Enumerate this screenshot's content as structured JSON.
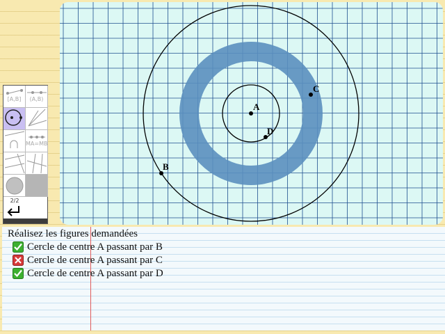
{
  "colors": {
    "grid_background": "#dcf8f4",
    "grid_line": "#1f4f8f",
    "ring_fill": "#5b8fbf",
    "ok": "#3db030",
    "fail": "#d63a3a"
  },
  "figure": {
    "points": [
      {
        "label": "A",
        "name": "point-a"
      },
      {
        "label": "B",
        "name": "point-b"
      },
      {
        "label": "C",
        "name": "point-c"
      },
      {
        "label": "D",
        "name": "point-d"
      }
    ],
    "circles": [
      {
        "center": "A",
        "through": "B"
      },
      {
        "center": "A",
        "through": "D"
      }
    ],
    "highlight_ring": {
      "center": "A"
    }
  },
  "toolbox": {
    "tools": [
      {
        "name": "segment-tool",
        "label": "[A,B]",
        "icon": "segment-icon"
      },
      {
        "name": "segment-tool-alt",
        "label": "(A,B)",
        "icon": "line-icon"
      },
      {
        "name": "circle-tool",
        "label": "",
        "icon": "circle-icon",
        "active": true
      },
      {
        "name": "ray-tool",
        "label": "",
        "icon": "ray-icon"
      },
      {
        "name": "arc-tool",
        "label": "",
        "icon": "arc-icon"
      },
      {
        "name": "equidistant-tool",
        "label": "MA=MB",
        "icon": "equidistant-icon"
      },
      {
        "name": "parallel-tool",
        "label": "",
        "icon": "parallel-icon"
      },
      {
        "name": "perpendicular-tool",
        "label": "",
        "icon": "perpendicular-icon"
      },
      {
        "name": "color-tool",
        "label": "",
        "icon": "grey-disc-icon"
      },
      {
        "name": "fill-tool",
        "label": "",
        "icon": "grey-square-icon"
      }
    ],
    "page_indicator": "2/2",
    "back_icon": "undo-arrow-icon"
  },
  "tasks": {
    "title": "Réalisez les figures demandées",
    "items": [
      {
        "label": "Cercle de centre A passant par B",
        "status": "ok",
        "icon": "check-icon"
      },
      {
        "label": "Cercle de centre A passant par C",
        "status": "fail",
        "icon": "cross-icon"
      },
      {
        "label": "Cercle de centre A passant par D",
        "status": "ok",
        "icon": "check-icon"
      }
    ]
  }
}
